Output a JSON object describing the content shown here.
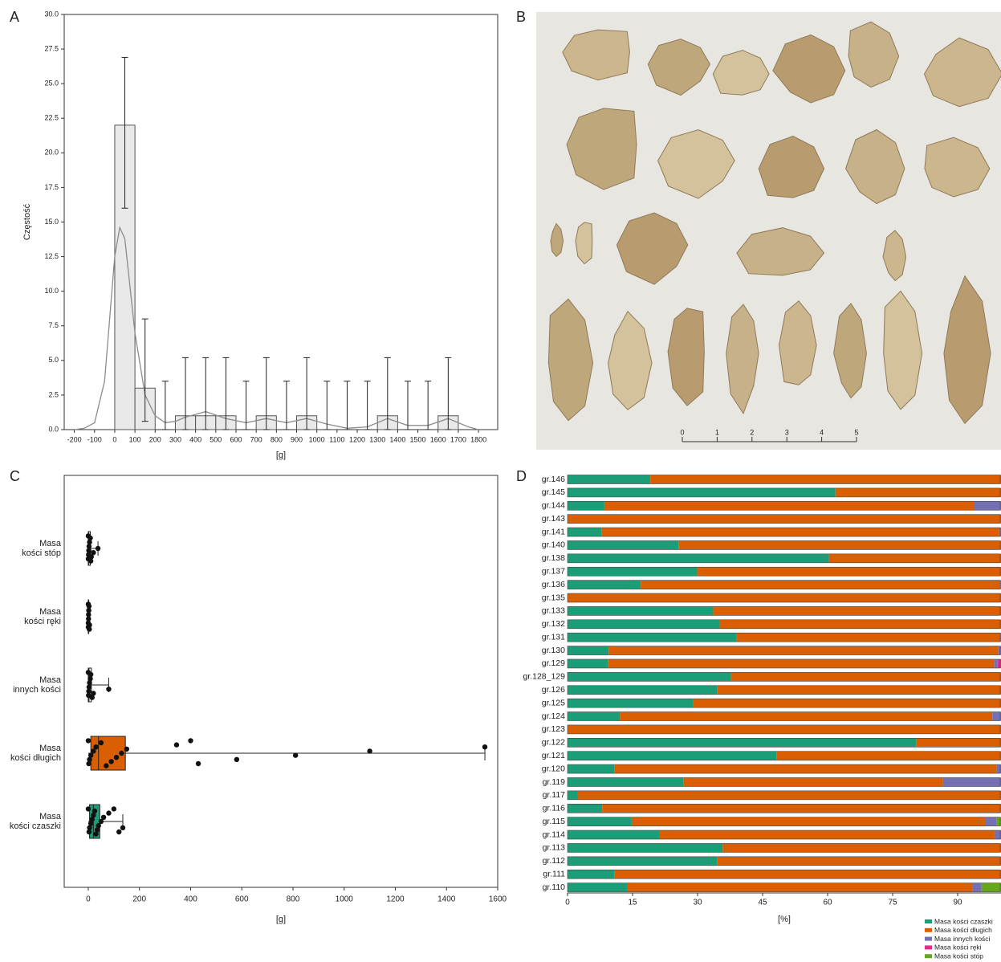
{
  "chart_data": [
    {
      "type": "histogram",
      "label": "A",
      "ylabel": "Częstość",
      "xlabel": "[g]",
      "xlim": [
        -250,
        1895
      ],
      "ylim": [
        0,
        30
      ],
      "xticks": [
        -200,
        -100,
        0,
        100,
        200,
        300,
        400,
        500,
        600,
        700,
        800,
        900,
        1000,
        1100,
        1200,
        1300,
        1400,
        1500,
        1600,
        1700,
        1800
      ],
      "yticks": [
        {
          "value": 0,
          "label": "0.0"
        },
        {
          "value": 2.5,
          "label": "2.5"
        },
        {
          "value": 5,
          "label": "5.0"
        },
        {
          "value": 7.5,
          "label": "7.5"
        },
        {
          "value": 10,
          "label": "10.0"
        },
        {
          "value": 12.5,
          "label": "12.5"
        },
        {
          "value": 15,
          "label": "15.0"
        },
        {
          "value": 17.5,
          "label": "17.5"
        },
        {
          "value": 20,
          "label": "20.0"
        },
        {
          "value": 22.5,
          "label": "22.5"
        },
        {
          "value": 25,
          "label": "25.0"
        },
        {
          "value": 27.5,
          "label": "27.5"
        },
        {
          "value": 30,
          "label": "30.0"
        }
      ],
      "bins": [
        0,
        100,
        200,
        300,
        400,
        500,
        600,
        700,
        800,
        900,
        1000,
        1100,
        1200,
        1300,
        1400,
        1500,
        1600,
        1700
      ],
      "values": [
        22,
        3,
        0,
        1,
        1,
        1,
        0,
        1,
        0,
        1,
        0,
        0,
        0,
        1,
        0,
        0,
        1
      ],
      "err_low": [
        16.0,
        0.6,
        0,
        0,
        0,
        0,
        0,
        0,
        0,
        0,
        0,
        0,
        0,
        0,
        0,
        0,
        0
      ],
      "err_high": [
        26.9,
        8.0,
        3.5,
        5.2,
        5.2,
        5.2,
        3.5,
        5.2,
        3.5,
        5.2,
        3.5,
        3.5,
        3.5,
        5.2,
        3.5,
        3.5,
        5.2
      ],
      "color": "#e9e9e9",
      "curve": {
        "x": [
          -200,
          -150,
          -100,
          -50,
          0,
          25,
          50,
          100,
          150,
          200,
          250,
          300,
          350,
          450,
          550,
          650,
          750,
          850,
          950,
          1050,
          1150,
          1250,
          1350,
          1450,
          1550,
          1650,
          1750,
          1800
        ],
        "y": [
          0,
          0.1,
          0.5,
          3.5,
          12.5,
          14.6,
          13.8,
          7.0,
          2.5,
          1.0,
          0.5,
          0.6,
          0.9,
          1.3,
          0.8,
          0.5,
          0.8,
          0.5,
          0.8,
          0.4,
          0.1,
          0.2,
          0.8,
          0.3,
          0.3,
          0.8,
          0.2,
          0
        ],
        "color": "#8c8c8c"
      }
    },
    {
      "type": "box",
      "label": "C",
      "xlabel": "[g]",
      "xlim": [
        -94,
        1600
      ],
      "xticks": [
        0,
        200,
        400,
        600,
        800,
        1000,
        1200,
        1400,
        1600
      ],
      "categories": [
        "Masa\nkości stóp",
        "Masa\nkości ręki",
        "Masa\ninnych kości",
        "Masa\nkości długich",
        "Masa\nkości czaszki"
      ],
      "colors": [
        "#ffffff",
        "#ffffff",
        "#ffffff",
        "#d95f02",
        "#1b9e77"
      ],
      "q1": [
        0,
        0,
        0,
        10,
        5
      ],
      "median": [
        2,
        0,
        3,
        40,
        20
      ],
      "q3": [
        8,
        2,
        12,
        145,
        45
      ],
      "whisker_low": [
        0,
        0,
        0,
        0,
        0
      ],
      "whisker_high": [
        38,
        5,
        80,
        1550,
        135
      ],
      "points": [
        [
          0,
          0,
          1,
          2,
          3,
          5,
          8,
          10,
          12,
          20,
          38
        ],
        [
          0,
          0,
          0,
          1,
          1,
          2,
          3,
          4,
          5
        ],
        [
          0,
          1,
          2,
          3,
          5,
          8,
          10,
          15,
          20,
          80
        ],
        [
          0,
          2,
          5,
          10,
          20,
          30,
          50,
          70,
          90,
          110,
          130,
          150,
          345,
          400,
          430,
          580,
          810,
          1100,
          1550
        ],
        [
          0,
          3,
          5,
          10,
          15,
          20,
          25,
          30,
          35,
          40,
          50,
          60,
          80,
          100,
          120,
          135
        ]
      ]
    },
    {
      "type": "stacked-bar",
      "label": "D",
      "xlabel": "[%]",
      "legend": "bottom-right",
      "xlim": [
        0,
        100
      ],
      "xticks": [
        0,
        15,
        30,
        45,
        60,
        75,
        90
      ],
      "categories": [
        "gr.146",
        "gr.145",
        "gr.144",
        "gr.143",
        "gr.141",
        "gr.140",
        "gr.138",
        "gr.137",
        "gr.136",
        "gr.135",
        "gr.133",
        "gr.132",
        "gr.131",
        "gr.130",
        "gr.129",
        "gr.128_129",
        "gr.126",
        "gr.125",
        "gr.124",
        "gr.123",
        "gr.122",
        "gr.121",
        "gr.120",
        "gr.119",
        "gr.117",
        "gr.116",
        "gr.115",
        "gr.114",
        "gr.113",
        "gr.112",
        "gr.111",
        "gr.110"
      ],
      "series": [
        {
          "name": "Masa kości czaszki",
          "color": "#1b9e77",
          "values": [
            19.1,
            61.8,
            8.5,
            0,
            7.8,
            25.6,
            60.3,
            29.9,
            16.9,
            0,
            33.6,
            35.1,
            39.0,
            9.5,
            9.3,
            37.7,
            34.5,
            28.9,
            12.1,
            0,
            80.5,
            48.2,
            10.8,
            26.7,
            2.4,
            8.0,
            14.8,
            21.2,
            35.8,
            34.5,
            10.8,
            13.7
          ]
        },
        {
          "name": "Masa kości długich",
          "color": "#d95f02",
          "values": [
            80.9,
            38.2,
            85.2,
            100,
            91.8,
            74.4,
            39.7,
            70.1,
            82.8,
            100,
            66.4,
            64.9,
            60.8,
            89.9,
            89.1,
            62.3,
            65.5,
            71.1,
            85.9,
            100,
            19.5,
            51.8,
            88.1,
            59.9,
            97.6,
            92.0,
            81.5,
            77.3,
            64.2,
            65.5,
            89.2,
            79.8
          ]
        },
        {
          "name": "Masa innych kości",
          "color": "#7570b3",
          "values": [
            0,
            0,
            6.3,
            0,
            0.4,
            0,
            0,
            0,
            0.3,
            0,
            0,
            0,
            0.2,
            0.6,
            0.8,
            0,
            0,
            0,
            2.0,
            0,
            0,
            0,
            1.1,
            13.4,
            0,
            0,
            2.6,
            1.5,
            0,
            0,
            0,
            2.0
          ]
        },
        {
          "name": "Masa kości ręki",
          "color": "#e7298a",
          "values": [
            0,
            0,
            0,
            0,
            0,
            0,
            0,
            0,
            0,
            0,
            0,
            0,
            0,
            0,
            0.8,
            0,
            0,
            0,
            0,
            0,
            0,
            0,
            0,
            0,
            0,
            0,
            0,
            0,
            0,
            0,
            0,
            0
          ]
        },
        {
          "name": "Masa kości stóp",
          "color": "#66a61e",
          "values": [
            0,
            0,
            0,
            0,
            0,
            0,
            0,
            0,
            0,
            0,
            0,
            0,
            0,
            0,
            0,
            0,
            0,
            0,
            0,
            0,
            0,
            0,
            0,
            0,
            0,
            0,
            1.1,
            0,
            0,
            0,
            0,
            4.5
          ]
        }
      ]
    }
  ],
  "photo": {
    "label": "B",
    "scale_ticks": [
      0,
      1,
      2,
      3,
      4,
      5
    ]
  }
}
